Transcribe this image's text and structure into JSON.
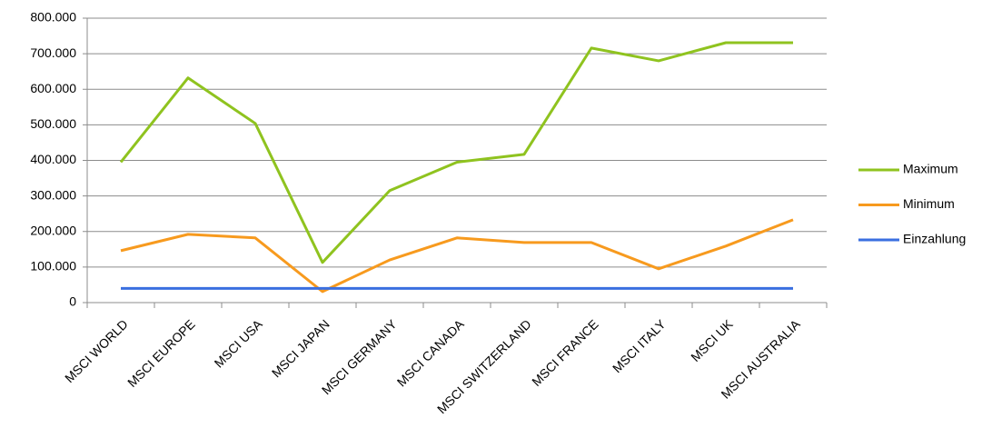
{
  "chart_data": {
    "type": "line",
    "categories": [
      "MSCI WORLD",
      "MSCI EUROPE",
      "MSCI USA",
      "MSCI JAPAN",
      "MSCI GERMANY",
      "MSCI CANADA",
      "MSCI SWITZERLAND",
      "MSCI FRANCE",
      "MSCI ITALY",
      "MSCI UK",
      "MSCI AUSTRALIA"
    ],
    "series": [
      {
        "name": "Maximum",
        "color": "#8fc31f",
        "values": [
          395000,
          632000,
          504000,
          113000,
          315000,
          395000,
          417000,
          716000,
          680000,
          731000,
          731000
        ]
      },
      {
        "name": "Minimum",
        "color": "#f79a1e",
        "values": [
          146000,
          192000,
          182000,
          31000,
          120000,
          182000,
          169000,
          169000,
          95000,
          159000,
          233000
        ]
      },
      {
        "name": "Einzahlung",
        "color": "#3a6fe0",
        "values": [
          40000,
          40000,
          40000,
          40000,
          40000,
          40000,
          40000,
          40000,
          40000,
          40000,
          40000
        ]
      }
    ],
    "ylim": [
      0,
      800000
    ],
    "yticks": [
      0,
      {
        "value": 100000,
        "label": "100.000"
      },
      {
        "value": 200000,
        "label": "200.000"
      },
      {
        "value": 300000,
        "label": "300.000"
      },
      {
        "value": 400000,
        "label": "400.000"
      },
      {
        "value": 500000,
        "label": "500.000"
      },
      {
        "value": 600000,
        "label": "600.000"
      },
      {
        "value": 700000,
        "label": "700.000"
      },
      {
        "value": 800000,
        "label": "800.000"
      }
    ],
    "grid": true,
    "legend": "right"
  }
}
